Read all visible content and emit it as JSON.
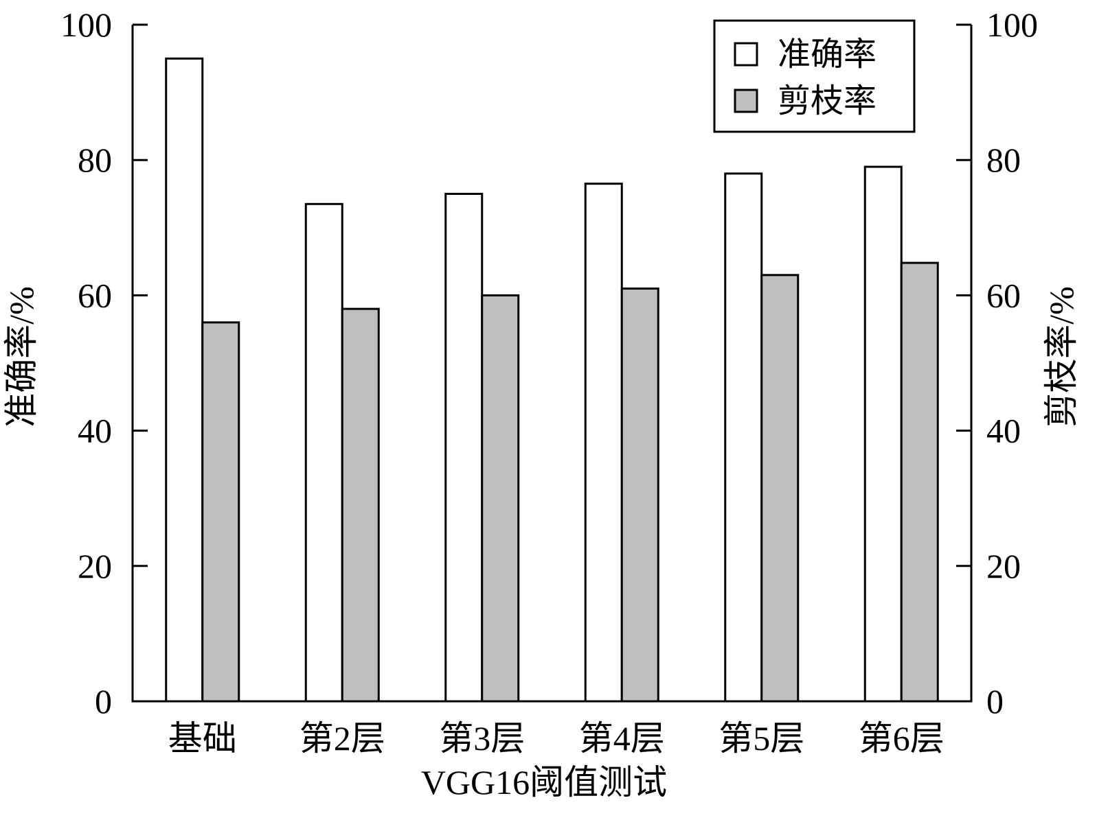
{
  "chart_data": {
    "type": "bar",
    "xlabel": "VGG16阈值测试",
    "ylabel": "准确率/%",
    "ylabel_right": "剪枝率/%",
    "ylim": [
      0,
      100
    ],
    "y_ticks": [
      "0",
      "20",
      "40",
      "60",
      "80",
      "100"
    ],
    "categories": [
      "基础",
      "第2层",
      "第3层",
      "第4层",
      "第5层",
      "第6层"
    ],
    "series": [
      {
        "name": "准确率",
        "axis": "left",
        "color": "#ffffff",
        "values": [
          95.0,
          73.5,
          75.0,
          76.5,
          78.0,
          79.0
        ]
      },
      {
        "name": "剪枝率",
        "axis": "right",
        "color": "#bfbfbf",
        "values": [
          56.0,
          58.0,
          60.0,
          61.0,
          63.0,
          64.8
        ]
      }
    ],
    "legend_position": "top-right",
    "grid": false
  }
}
